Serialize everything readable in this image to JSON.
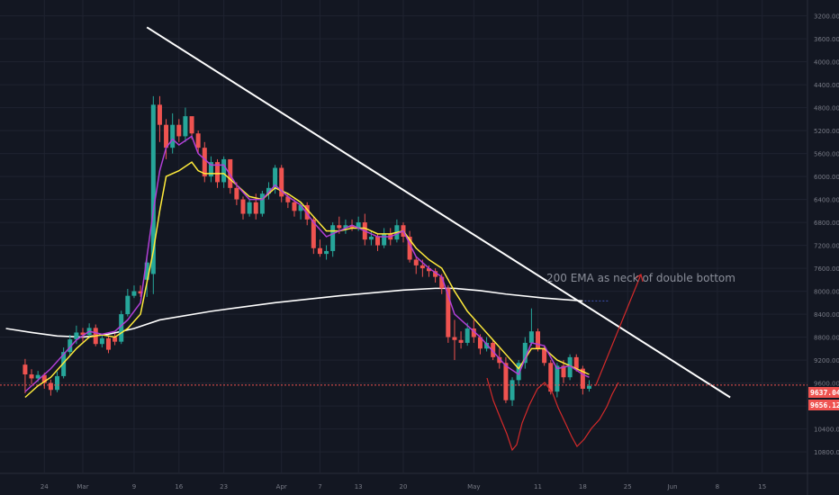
{
  "chart_data": {
    "type": "candlestick",
    "y_axis": {
      "inverted": true,
      "range": [
        3050,
        11050
      ],
      "ticks": [
        "3200.00",
        "3600.00",
        "4000.00",
        "4400.00",
        "4800.00",
        "5200.00",
        "5600.00",
        "6000.00",
        "6400.00",
        "6800.00",
        "7200.00",
        "7600.00",
        "8000.00",
        "8400.00",
        "8800.00",
        "9200.00",
        "9600.00",
        "10000.00",
        "10400.00",
        "10800.00"
      ]
    },
    "x_axis": {
      "ticks": [
        {
          "label": "24",
          "day": -6
        },
        {
          "label": "Mar",
          "day": 0
        },
        {
          "label": "9",
          "day": 8
        },
        {
          "label": "16",
          "day": 15
        },
        {
          "label": "23",
          "day": 22
        },
        {
          "label": "Apr",
          "day": 31
        },
        {
          "label": "7",
          "day": 37
        },
        {
          "label": "13",
          "day": 43
        },
        {
          "label": "20",
          "day": 50
        },
        {
          "label": "May",
          "day": 61
        },
        {
          "label": "11",
          "day": 71
        },
        {
          "label": "18",
          "day": 78
        },
        {
          "label": "25",
          "day": 85
        },
        {
          "label": "Jun",
          "day": 92
        },
        {
          "label": "8",
          "day": 99
        },
        {
          "label": "15",
          "day": 106
        }
      ]
    },
    "candles": [
      [
        -9,
        9280,
        9450,
        9780,
        9180
      ],
      [
        -8,
        9450,
        9520,
        9620,
        9360
      ],
      [
        -7,
        9520,
        9460,
        9580,
        9390
      ],
      [
        -6,
        9460,
        9600,
        9700,
        9420
      ],
      [
        -5,
        9600,
        9720,
        9820,
        9540
      ],
      [
        -4,
        9720,
        9480,
        9760,
        9400
      ],
      [
        -3,
        9480,
        9060,
        9520,
        8980
      ],
      [
        -2,
        9060,
        8840,
        9120,
        8760
      ],
      [
        -1,
        8840,
        8720,
        8920,
        8600
      ],
      [
        0,
        8720,
        8760,
        8880,
        8640
      ],
      [
        1,
        8760,
        8640,
        8820,
        8560
      ],
      [
        2,
        8640,
        8920,
        8960,
        8580
      ],
      [
        3,
        8920,
        8820,
        8980,
        8760
      ],
      [
        4,
        8820,
        9020,
        9080,
        8780
      ],
      [
        5,
        8800,
        8880,
        8940,
        8740
      ],
      [
        6,
        8880,
        8400,
        8920,
        8340
      ],
      [
        7,
        8400,
        8080,
        8440,
        7960
      ],
      [
        8,
        8080,
        8000,
        8120,
        7900
      ],
      [
        9,
        8000,
        8040,
        8100,
        7900
      ],
      [
        10,
        7800,
        7500,
        8100,
        7400
      ],
      [
        11,
        7700,
        4750,
        8050,
        4600
      ],
      [
        12,
        4750,
        5100,
        5400,
        4600
      ],
      [
        13,
        5100,
        5500,
        5700,
        5000
      ],
      [
        14,
        5500,
        5100,
        5600,
        4900
      ],
      [
        15,
        5100,
        5300,
        5400,
        5000
      ],
      [
        16,
        5300,
        4950,
        5400,
        4800
      ],
      [
        17,
        4950,
        5250,
        5350,
        5050
      ],
      [
        18,
        5250,
        5500,
        5600,
        5200
      ],
      [
        19,
        5500,
        6000,
        6100,
        5400
      ],
      [
        20,
        6000,
        5750,
        6100,
        5650
      ],
      [
        21,
        5750,
        6100,
        6200,
        5700
      ],
      [
        22,
        6100,
        5700,
        6200,
        5650
      ],
      [
        23,
        5700,
        6200,
        6300,
        5900
      ],
      [
        24,
        6200,
        6400,
        6500,
        6100
      ],
      [
        25,
        6400,
        6650,
        6750,
        6350
      ],
      [
        26,
        6650,
        6450,
        6700,
        6400
      ],
      [
        27,
        6450,
        6650,
        6750,
        6300
      ],
      [
        28,
        6650,
        6300,
        6700,
        6250
      ],
      [
        29,
        6300,
        6200,
        6400,
        6100
      ],
      [
        30,
        6200,
        5850,
        6300,
        5800
      ],
      [
        31,
        5850,
        6350,
        6450,
        5800
      ],
      [
        32,
        6350,
        6450,
        6550,
        6300
      ],
      [
        33,
        6450,
        6600,
        6700,
        6400
      ],
      [
        34,
        6600,
        6500,
        6750,
        6450
      ],
      [
        35,
        6500,
        6750,
        6850,
        6450
      ],
      [
        36,
        6750,
        7250,
        7350,
        6700
      ],
      [
        37,
        7250,
        7350,
        7400,
        7100
      ],
      [
        38,
        7350,
        7300,
        7450,
        7200
      ],
      [
        39,
        7300,
        6850,
        7400,
        6800
      ],
      [
        40,
        6850,
        6900,
        7000,
        6700
      ],
      [
        41,
        6900,
        6850,
        7000,
        6750
      ],
      [
        42,
        6850,
        6900,
        6950,
        6750
      ],
      [
        43,
        6900,
        6800,
        6950,
        6700
      ],
      [
        44,
        6800,
        7100,
        7200,
        6650
      ],
      [
        45,
        7100,
        7050,
        7200,
        6950
      ],
      [
        46,
        7050,
        7200,
        7300,
        7000
      ],
      [
        47,
        7200,
        7000,
        7250,
        6900
      ],
      [
        48,
        7000,
        7100,
        7200,
        6900
      ],
      [
        49,
        7100,
        6850,
        7150,
        6750
      ],
      [
        50,
        6850,
        7050,
        7150,
        6800
      ],
      [
        51,
        7050,
        7450,
        7500,
        6950
      ],
      [
        52,
        7450,
        7550,
        7700,
        7400
      ],
      [
        53,
        7550,
        7600,
        7750,
        7450
      ],
      [
        54,
        7600,
        7650,
        7750,
        7550
      ],
      [
        55,
        7650,
        7750,
        7850,
        7600
      ],
      [
        56,
        7750,
        7950,
        8050,
        7700
      ],
      [
        57,
        7950,
        8800,
        8900,
        7900
      ],
      [
        58,
        8800,
        8850,
        9200,
        8500
      ],
      [
        59,
        8850,
        8900,
        9000,
        8700
      ],
      [
        60,
        8900,
        8650,
        8950,
        8550
      ],
      [
        61,
        8650,
        8800,
        8900,
        8500
      ],
      [
        62,
        8800,
        9000,
        9100,
        8750
      ],
      [
        63,
        9000,
        8900,
        9050,
        8800
      ],
      [
        64,
        8900,
        9150,
        9200,
        8850
      ],
      [
        65,
        9150,
        9250,
        9350,
        9000
      ],
      [
        66,
        9250,
        9900,
        9950,
        9150
      ],
      [
        67,
        9900,
        9550,
        10000,
        9500
      ],
      [
        68,
        9550,
        9250,
        9650,
        9200
      ],
      [
        69,
        9250,
        8900,
        9350,
        8800
      ],
      [
        70,
        8900,
        8700,
        8950,
        8300
      ],
      [
        71,
        8700,
        9000,
        9050,
        8650
      ],
      [
        72,
        9000,
        9250,
        9300,
        8950
      ],
      [
        73,
        9250,
        9750,
        9800,
        9200
      ],
      [
        74,
        9750,
        9300,
        9850,
        9250
      ],
      [
        75,
        9300,
        9500,
        9600,
        9200
      ],
      [
        76,
        9500,
        9150,
        9550,
        9100
      ],
      [
        77,
        9150,
        9350,
        9400,
        9100
      ],
      [
        78,
        9350,
        9700,
        9800,
        9300
      ],
      [
        79,
        9700,
        9650,
        9750,
        9550
      ]
    ],
    "series": [
      {
        "name": "",
        "color": "#ffeb3b",
        "points": [
          [
            -9,
            9850
          ],
          [
            -7,
            9650
          ],
          [
            -5,
            9500
          ],
          [
            -3,
            9250
          ],
          [
            -1,
            9000
          ],
          [
            1,
            8800
          ],
          [
            3,
            8760
          ],
          [
            5,
            8800
          ],
          [
            7,
            8650
          ],
          [
            9,
            8400
          ],
          [
            11,
            7300
          ],
          [
            12,
            6600
          ],
          [
            13,
            6000
          ],
          [
            15,
            5900
          ],
          [
            17,
            5750
          ],
          [
            18,
            5900
          ],
          [
            19,
            5950
          ],
          [
            20,
            5950
          ],
          [
            22,
            5950
          ],
          [
            24,
            6150
          ],
          [
            26,
            6350
          ],
          [
            28,
            6400
          ],
          [
            30,
            6200
          ],
          [
            32,
            6300
          ],
          [
            34,
            6450
          ],
          [
            36,
            6700
          ],
          [
            38,
            6950
          ],
          [
            40,
            6950
          ],
          [
            42,
            6900
          ],
          [
            44,
            6900
          ],
          [
            46,
            7000
          ],
          [
            48,
            7000
          ],
          [
            50,
            6950
          ],
          [
            52,
            7250
          ],
          [
            54,
            7450
          ],
          [
            56,
            7600
          ],
          [
            58,
            8000
          ],
          [
            60,
            8350
          ],
          [
            62,
            8600
          ],
          [
            64,
            8850
          ],
          [
            66,
            9100
          ],
          [
            68,
            9350
          ],
          [
            70,
            9000
          ],
          [
            72,
            9000
          ],
          [
            74,
            9200
          ],
          [
            76,
            9300
          ],
          [
            78,
            9400
          ],
          [
            79,
            9450
          ]
        ]
      },
      {
        "name": "",
        "color": "#b13fd6",
        "points": [
          [
            -9,
            9750
          ],
          [
            -7,
            9550
          ],
          [
            -5,
            9350
          ],
          [
            -3,
            9100
          ],
          [
            -1,
            8850
          ],
          [
            1,
            8700
          ],
          [
            3,
            8750
          ],
          [
            5,
            8700
          ],
          [
            7,
            8500
          ],
          [
            9,
            8200
          ],
          [
            11,
            6600
          ],
          [
            12,
            5900
          ],
          [
            13,
            5500
          ],
          [
            14,
            5350
          ],
          [
            15,
            5450
          ],
          [
            17,
            5300
          ],
          [
            18,
            5600
          ],
          [
            20,
            5800
          ],
          [
            22,
            5800
          ],
          [
            24,
            6150
          ],
          [
            26,
            6400
          ],
          [
            28,
            6400
          ],
          [
            30,
            6150
          ],
          [
            32,
            6350
          ],
          [
            34,
            6500
          ],
          [
            36,
            6800
          ],
          [
            38,
            7050
          ],
          [
            40,
            6950
          ],
          [
            42,
            6850
          ],
          [
            44,
            6950
          ],
          [
            46,
            7050
          ],
          [
            48,
            7050
          ],
          [
            50,
            6950
          ],
          [
            52,
            7400
          ],
          [
            54,
            7600
          ],
          [
            56,
            7750
          ],
          [
            58,
            8400
          ],
          [
            60,
            8600
          ],
          [
            62,
            8800
          ],
          [
            64,
            9050
          ],
          [
            66,
            9300
          ],
          [
            68,
            9450
          ],
          [
            70,
            8900
          ],
          [
            72,
            8950
          ],
          [
            74,
            9350
          ],
          [
            76,
            9300
          ],
          [
            78,
            9450
          ],
          [
            79,
            9500
          ]
        ]
      },
      {
        "name": "200 EMA",
        "color": "#ffffff",
        "points": [
          [
            -12,
            8650
          ],
          [
            -8,
            8720
          ],
          [
            -4,
            8780
          ],
          [
            0,
            8800
          ],
          [
            4,
            8750
          ],
          [
            8,
            8650
          ],
          [
            12,
            8500
          ],
          [
            20,
            8350
          ],
          [
            30,
            8200
          ],
          [
            40,
            8080
          ],
          [
            50,
            7980
          ],
          [
            55,
            7950
          ],
          [
            58,
            7950
          ],
          [
            62,
            7990
          ],
          [
            66,
            8050
          ],
          [
            72,
            8120
          ],
          [
            78,
            8170
          ]
        ]
      }
    ],
    "trendline": {
      "color": "#ffffff",
      "from": [
        10,
        3400
      ],
      "to": [
        101,
        9850
      ]
    },
    "current_price_line": {
      "value": 9637.04,
      "color": "#ef5350"
    },
    "price_labels": [
      {
        "text": "9637.04",
        "color": "#ef5350"
      },
      {
        "text": "9656.12",
        "color": "#ef5350"
      }
    ],
    "annotation": {
      "text": "200 EMA as neck of double bottom",
      "color": "#8a8e99"
    },
    "drawing": {
      "type": "double-bottom-sketch",
      "color": "#d42a2a"
    },
    "projection_arrow": {
      "color": "#d42a2a",
      "from": [
        80,
        9650
      ],
      "to": [
        85,
        7900
      ]
    },
    "colors": {
      "background": "#131722",
      "up": "#26a69a",
      "down": "#ef5350",
      "grid": "#1f2330",
      "axis_text": "#787b86"
    }
  }
}
